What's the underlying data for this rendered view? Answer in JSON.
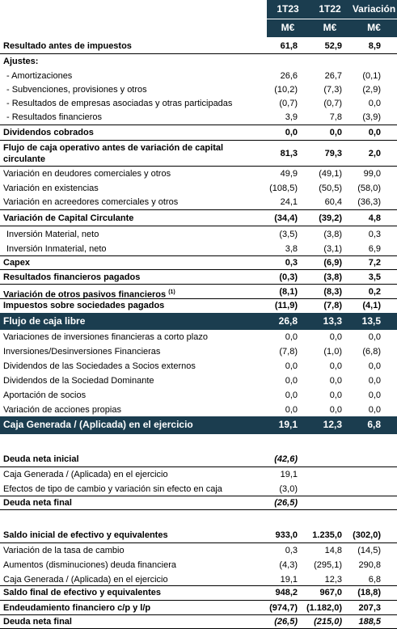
{
  "header": {
    "c1": "1T23",
    "c2": "1T22",
    "c3": "Variación",
    "u1": "M€",
    "u2": "M€",
    "u3": "M€"
  },
  "rows": [
    {
      "label": "Resultado antes de impuestos",
      "v1": "61,8",
      "v2": "52,9",
      "v3": "8,9"
    },
    {
      "label": "Ajustes:",
      "v1": "",
      "v2": "",
      "v3": ""
    },
    {
      "label": "- Amortizaciones",
      "v1": "26,6",
      "v2": "26,7",
      "v3": "(0,1)"
    },
    {
      "label": "- Subvenciones, provisiones y otros",
      "v1": "(10,2)",
      "v2": "(7,3)",
      "v3": "(2,9)"
    },
    {
      "label": "- Resultados de empresas asociadas y otras participadas",
      "v1": "(0,7)",
      "v2": "(0,7)",
      "v3": "0,0"
    },
    {
      "label": "- Resultados financieros",
      "v1": "3,9",
      "v2": "7,8",
      "v3": "(3,9)"
    },
    {
      "label": "Dividendos cobrados",
      "v1": "0,0",
      "v2": "0,0",
      "v3": "0,0"
    },
    {
      "label": "Flujo de caja operativo antes de variación de capital",
      "label2": "circulante",
      "v1": "81,3",
      "v2": "79,3",
      "v3": "2,0"
    },
    {
      "label": "Variación en deudores comerciales y otros",
      "v1": "49,9",
      "v2": "(49,1)",
      "v3": "99,0"
    },
    {
      "label": "Variación en existencias",
      "v1": "(108,5)",
      "v2": "(50,5)",
      "v3": "(58,0)"
    },
    {
      "label": "Variación en acreedores comerciales y otros",
      "v1": "24,1",
      "v2": "60,4",
      "v3": "(36,3)"
    },
    {
      "label": "Variación de Capital Circulante",
      "v1": "(34,4)",
      "v2": "(39,2)",
      "v3": "4,8"
    },
    {
      "label": "Inversión Material, neto",
      "v1": "(3,5)",
      "v2": "(3,8)",
      "v3": "0,3"
    },
    {
      "label": "Inversión Inmaterial, neto",
      "v1": "3,8",
      "v2": "(3,1)",
      "v3": "6,9"
    },
    {
      "label": "Capex",
      "v1": "0,3",
      "v2": "(6,9)",
      "v3": "7,2"
    },
    {
      "label": "Resultados financieros pagados",
      "v1": "(0,3)",
      "v2": "(3,8)",
      "v3": "3,5"
    },
    {
      "label": "Variación de otros pasivos financieros",
      "sup": "(1)",
      "v1": "(8,1)",
      "v2": "(8,3)",
      "v3": "0,2"
    },
    {
      "label": "Impuestos sobre sociedades pagados",
      "v1": "(11,9)",
      "v2": "(7,8)",
      "v3": "(4,1)"
    },
    {
      "label": "Flujo de caja libre",
      "v1": "26,8",
      "v2": "13,3",
      "v3": "13,5"
    },
    {
      "label": "Variaciones de inversiones financieras a corto plazo",
      "v1": "0,0",
      "v2": "0,0",
      "v3": "0,0"
    },
    {
      "label": "Inversiones/Desinversiones Financieras",
      "v1": "(7,8)",
      "v2": "(1,0)",
      "v3": "(6,8)"
    },
    {
      "label": "Dividendos de las Sociedades a Socios externos",
      "v1": "0,0",
      "v2": "0,0",
      "v3": "0,0"
    },
    {
      "label": "Dividendos de la Sociedad Dominante",
      "v1": "0,0",
      "v2": "0,0",
      "v3": "0,0"
    },
    {
      "label": "Aportación de socios",
      "v1": "0,0",
      "v2": "0,0",
      "v3": "0,0"
    },
    {
      "label": "Variación de acciones propias",
      "v1": "0,0",
      "v2": "0,0",
      "v3": "0,0"
    },
    {
      "label": "Caja Generada / (Aplicada) en el ejercicio",
      "v1": "19,1",
      "v2": "12,3",
      "v3": "6,8"
    },
    {
      "label": "Deuda neta inicial",
      "v1": "(42,6)",
      "v2": "",
      "v3": ""
    },
    {
      "label": "Caja Generada / (Aplicada) en el ejercicio",
      "v1": "19,1",
      "v2": "",
      "v3": ""
    },
    {
      "label": "Efectos de tipo de cambio y variación sin efecto en caja",
      "v1": "(3,0)",
      "v2": "",
      "v3": ""
    },
    {
      "label": "Deuda neta final",
      "v1": "(26,5)",
      "v2": "",
      "v3": ""
    },
    {
      "label": "Saldo inicial de efectivo y equivalentes",
      "v1": "933,0",
      "v2": "1.235,0",
      "v3": "(302,0)"
    },
    {
      "label": "Variación de la tasa de cambio",
      "v1": "0,3",
      "v2": "14,8",
      "v3": "(14,5)"
    },
    {
      "label": "Aumentos (disminuciones) deuda financiera",
      "v1": "(4,3)",
      "v2": "(295,1)",
      "v3": "290,8"
    },
    {
      "label": "Caja Generada / (Aplicada) en el ejercicio",
      "v1": "19,1",
      "v2": "12,3",
      "v3": "6,8"
    },
    {
      "label": "Saldo final de efectivo y equivalentes",
      "v1": "948,2",
      "v2": "967,0",
      "v3": "(18,8)"
    },
    {
      "label": "Endeudamiento financiero c/p y l/p",
      "v1": "(974,7)",
      "v2": "(1.182,0)",
      "v3": "207,3"
    },
    {
      "label": "Deuda neta final",
      "v1": "(26,5)",
      "v2": "(215,0)",
      "v3": "188,5"
    }
  ]
}
